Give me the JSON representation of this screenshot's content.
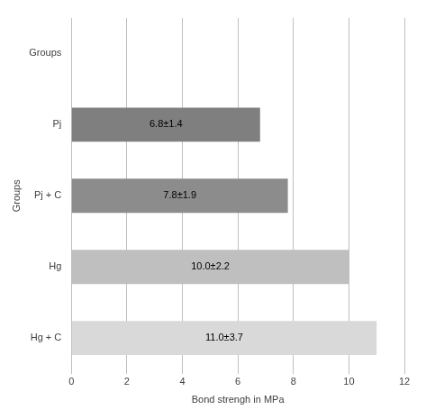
{
  "chart_data": {
    "type": "bar",
    "orientation": "horizontal",
    "categories": [
      "Groups",
      "Pj",
      "Pj + C",
      "Hg",
      "Hg + C"
    ],
    "values": [
      null,
      6.8,
      7.8,
      10.0,
      11.0
    ],
    "value_labels": [
      null,
      "6.8±1.4",
      "7.8±1.9",
      "10.0±2.2",
      "11.0±3.7"
    ],
    "colors": [
      null,
      "#7f7f7f",
      "#8c8c8c",
      "#bfbfbf",
      "#d9d9d9"
    ],
    "x_label": "Bond strengh in MPa",
    "y_label": "Groups",
    "xlim": [
      0,
      12
    ],
    "xticks": [
      0,
      2,
      4,
      6,
      8,
      10,
      12
    ],
    "grid": true,
    "data_labels": true
  }
}
